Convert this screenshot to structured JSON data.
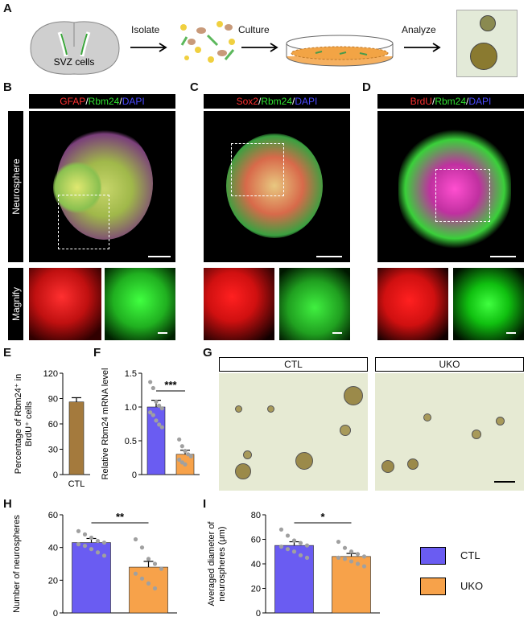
{
  "panels": {
    "A": "A",
    "B": "B",
    "C": "C",
    "D": "D",
    "E": "E",
    "F": "F",
    "G": "G",
    "H": "H",
    "I": "I"
  },
  "workflow": {
    "brain_label": "SVZ cells",
    "step1": "Isolate",
    "step2": "Culture",
    "step3": "Analyze"
  },
  "staining": {
    "B": {
      "red": "GFAP",
      "green": "Rbm24",
      "blue": "DAPI"
    },
    "C": {
      "red": "Sox2",
      "green": "Rbm24",
      "blue": "DAPI"
    },
    "D": {
      "red": "BrdU",
      "green": "Rbm24",
      "blue": "DAPI"
    },
    "sep": "/",
    "row1": "Neurosphere",
    "row2": "Magnify"
  },
  "colors": {
    "ctl": "#6a5cf2",
    "uko": "#f7a24a",
    "brown": "#a47a3d",
    "red": "#ff2020",
    "green": "#22e522",
    "blue": "#3a3aff"
  },
  "groups": {
    "G_ctl": "CTL",
    "G_uko": "UKO",
    "legend_ctl": "CTL",
    "legend_uko": "UKO"
  },
  "chart_data": [
    {
      "id": "E",
      "type": "bar",
      "ylabel_line1": "Percentage of Rbm24⁺ in",
      "ylabel_line2": "BrdU⁺ cells",
      "ylim": [
        0,
        120
      ],
      "yticks": [
        "0",
        "30",
        "60",
        "90",
        "120"
      ],
      "categories": [
        "CTL"
      ],
      "values": [
        86
      ],
      "errors": [
        5
      ]
    },
    {
      "id": "F",
      "type": "bar",
      "ylabel_line1": "Relative  Rbm24 mRNA level",
      "ylim": [
        0,
        1.5
      ],
      "yticks": [
        "0",
        "0.5",
        "1.0",
        "1.5"
      ],
      "categories": [
        "CTL",
        "UKO"
      ],
      "values": [
        1.0,
        0.3
      ],
      "errors": [
        0.1,
        0.06
      ],
      "points": [
        [
          1.37,
          1.28,
          1.08,
          1.02,
          0.98,
          0.92,
          0.88,
          0.8,
          0.74,
          0.7
        ],
        [
          0.52,
          0.42,
          0.35,
          0.3,
          0.27,
          0.22,
          0.18,
          0.15
        ]
      ],
      "significance": "***"
    },
    {
      "id": "H",
      "type": "bar",
      "ylabel": "Number of neurospheres",
      "ylim": [
        0,
        60
      ],
      "yticks": [
        "0",
        "20",
        "40",
        "60"
      ],
      "categories": [
        "CTL",
        "UKO"
      ],
      "values": [
        43,
        28
      ],
      "errors": [
        2.5,
        3.5
      ],
      "points": [
        [
          50,
          48,
          46,
          44,
          43,
          42,
          41,
          39,
          37,
          35
        ],
        [
          45,
          40,
          33,
          30,
          27,
          24,
          21,
          18,
          15
        ]
      ],
      "significance": "**"
    },
    {
      "id": "I",
      "type": "bar",
      "ylabel_line1": "Averaged diameter of",
      "ylabel_line2": "neurospheres (μm)",
      "ylim": [
        0,
        80
      ],
      "yticks": [
        "0",
        "20",
        "40",
        "60",
        "80"
      ],
      "categories": [
        "CTL",
        "UKO"
      ],
      "values": [
        55,
        46
      ],
      "errors": [
        3,
        2.5
      ],
      "points": [
        [
          68,
          63,
          59,
          57,
          55,
          54,
          52,
          50,
          47,
          45
        ],
        [
          58,
          53,
          50,
          48,
          46,
          45,
          44,
          42,
          40,
          38
        ]
      ],
      "significance": "*"
    }
  ]
}
